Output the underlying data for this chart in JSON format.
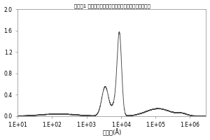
{
  "title": "实施例1 制造的锂锰锰钴复合氧化物粉末的粒孔分布曲线",
  "xlabel": "孔半径(Å)",
  "ylabel": "",
  "xlim_log": [
    10,
    3000000
  ],
  "ylim": [
    0.0,
    2.0
  ],
  "yticks": [
    0.0,
    0.4,
    0.8,
    1.2,
    1.6,
    2.0
  ],
  "xtick_labels": [
    "1.E+01",
    "1.E+02",
    "1.E+03",
    "1.E+04",
    "1.E+05",
    "1.E+06"
  ],
  "xtick_positions": [
    10,
    100,
    1000,
    10000,
    100000,
    1000000
  ],
  "line_color": "#444444",
  "background_color": "#ffffff",
  "title_fontsize": 5.0,
  "axis_fontsize": 6,
  "tick_fontsize": 5.5
}
